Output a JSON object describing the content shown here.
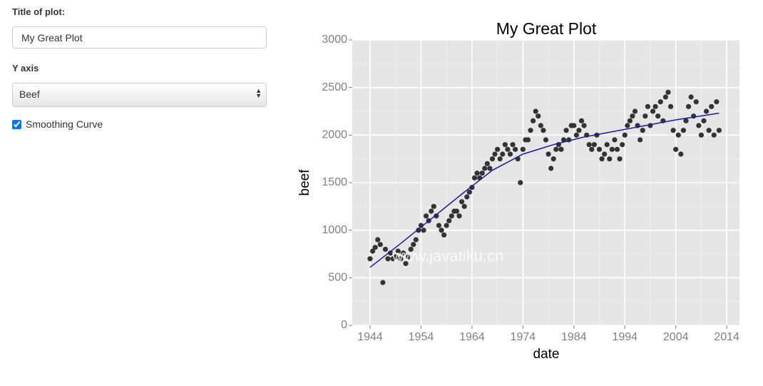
{
  "form": {
    "title_label": "Title of plot:",
    "title_input": "My Great Plot",
    "yaxis_label": "Y axis",
    "yaxis_select": "Beef",
    "smoothing_label": "Smoothing Curve",
    "smoothing_checked": true
  },
  "chart_data": {
    "type": "scatter",
    "title": "My Great Plot",
    "x_label": "date",
    "y_label": "beef",
    "watermark": "www.javatiku.cn",
    "point_color": "#333333",
    "grid": true,
    "xlim": [
      1940.5,
      2016.5
    ],
    "xticks": [
      1944,
      1954,
      1964,
      1974,
      1984,
      1994,
      2004,
      2014
    ],
    "ylim": [
      0,
      3000
    ],
    "yticks": [
      0,
      500,
      1000,
      1500,
      2000,
      2500,
      3000
    ],
    "x": [
      1944,
      1944.5,
      1945,
      1945.5,
      1946,
      1946.5,
      1947,
      1947.5,
      1948,
      1948.5,
      1949,
      1949.5,
      1950,
      1950.5,
      1951,
      1951.5,
      1952,
      1952.5,
      1953,
      1953.5,
      1954,
      1954.5,
      1955,
      1955.5,
      1956,
      1956.5,
      1957,
      1957.5,
      1958,
      1958.5,
      1959,
      1959.5,
      1960,
      1960.5,
      1961,
      1961.5,
      1962,
      1962.5,
      1963,
      1963.5,
      1964,
      1964.5,
      1965,
      1965.5,
      1966,
      1966.5,
      1967,
      1967.5,
      1968,
      1968.5,
      1969,
      1969.5,
      1970,
      1970.5,
      1971,
      1971.5,
      1972,
      1972.5,
      1973,
      1973.5,
      1974,
      1974.5,
      1975,
      1975.5,
      1976,
      1976.5,
      1977,
      1977.5,
      1978,
      1978.5,
      1979,
      1979.5,
      1980,
      1980.5,
      1981,
      1981.5,
      1982,
      1982.5,
      1983,
      1983.5,
      1984,
      1984.5,
      1985,
      1985.5,
      1986,
      1986.5,
      1987,
      1987.5,
      1988,
      1988.5,
      1989,
      1989.5,
      1990,
      1990.5,
      1991,
      1991.5,
      1992,
      1992.5,
      1993,
      1993.5,
      1994,
      1994.5,
      1995,
      1995.5,
      1996,
      1996.5,
      1997,
      1997.5,
      1998,
      1998.5,
      1999,
      1999.5,
      2000,
      2000.5,
      2001,
      2001.5,
      2002,
      2002.5,
      2003,
      2003.5,
      2004,
      2004.5,
      2005,
      2005.5,
      2006,
      2006.5,
      2007,
      2007.5,
      2008,
      2008.5,
      2009,
      2009.5,
      2010,
      2010.5,
      2011,
      2011.5,
      2012,
      2012.5
    ],
    "values": [
      700,
      780,
      820,
      900,
      850,
      450,
      800,
      700,
      760,
      700,
      720,
      780,
      700,
      760,
      650,
      720,
      800,
      850,
      900,
      1000,
      1050,
      1000,
      1150,
      1100,
      1200,
      1250,
      1150,
      1050,
      1000,
      950,
      1050,
      1100,
      1150,
      1200,
      1200,
      1150,
      1300,
      1250,
      1350,
      1400,
      1450,
      1550,
      1600,
      1550,
      1600,
      1650,
      1700,
      1650,
      1750,
      1800,
      1850,
      1750,
      1800,
      1900,
      1850,
      1800,
      1900,
      1850,
      1750,
      1500,
      1850,
      1950,
      1950,
      2050,
      2150,
      2250,
      2200,
      2100,
      2050,
      1950,
      1800,
      1650,
      1750,
      1850,
      1900,
      1850,
      1950,
      2050,
      1950,
      2100,
      2100,
      2000,
      2050,
      2150,
      2100,
      2000,
      1900,
      1850,
      1900,
      2000,
      1850,
      1750,
      1800,
      1900,
      1750,
      1850,
      1950,
      1850,
      1750,
      1900,
      2000,
      2100,
      2150,
      2200,
      2250,
      2100,
      1950,
      2050,
      2200,
      2300,
      2100,
      2250,
      2300,
      2200,
      2350,
      2150,
      2400,
      2450,
      2300,
      2050,
      1850,
      2000,
      1800,
      2050,
      2150,
      2300,
      2400,
      2200,
      2350,
      2100,
      2000,
      2150,
      2250,
      2050,
      2300,
      2000,
      2350,
      2050
    ],
    "smooth": {
      "color": "#1a1aa6",
      "x": [
        1944,
        1950,
        1956,
        1962,
        1968,
        1974,
        1980,
        1986,
        1992,
        1998,
        2004,
        2010,
        2012.5
      ],
      "values": [
        610,
        860,
        1120,
        1380,
        1630,
        1800,
        1900,
        1980,
        2040,
        2100,
        2160,
        2210,
        2230
      ]
    }
  }
}
